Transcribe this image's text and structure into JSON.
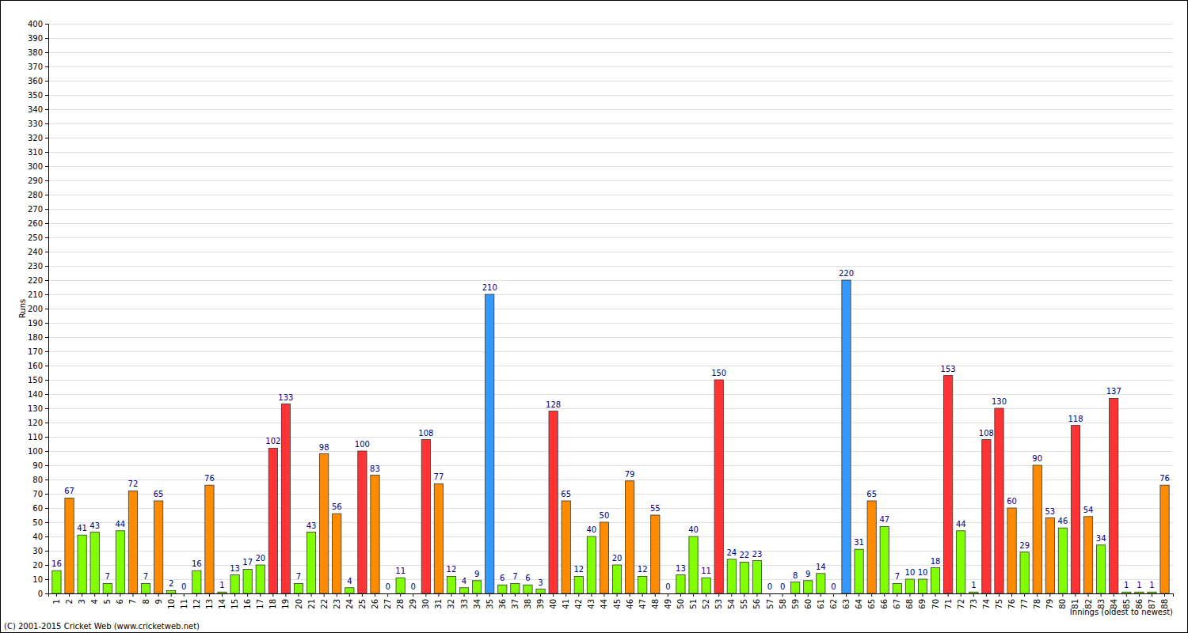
{
  "chart_data": {
    "type": "bar",
    "y_label": "Runs",
    "x_label": "Innings (oldest to newest)",
    "annotations": [
      "(C) 2001-2015 Cricket Web (www.cricketweb.net)"
    ],
    "categories": [
      "1",
      "2",
      "3",
      "4",
      "5",
      "6",
      "7",
      "8",
      "9",
      "10",
      "11",
      "12",
      "13",
      "14",
      "15",
      "16",
      "17",
      "18",
      "19",
      "20",
      "21",
      "22",
      "23",
      "24",
      "25",
      "26",
      "27",
      "28",
      "29",
      "30",
      "31",
      "32",
      "33",
      "34",
      "35",
      "36",
      "37",
      "38",
      "39",
      "40",
      "41",
      "42",
      "43",
      "44",
      "45",
      "46",
      "47",
      "48",
      "49",
      "50",
      "51",
      "52",
      "53",
      "54",
      "55",
      "56",
      "57",
      "58",
      "59",
      "60",
      "61",
      "62",
      "63",
      "64",
      "65",
      "66",
      "67",
      "68",
      "69",
      "70",
      "71",
      "72",
      "73",
      "74",
      "75",
      "76",
      "77",
      "78",
      "79",
      "80",
      "81",
      "82",
      "83",
      "84",
      "85",
      "86",
      "87",
      "88"
    ],
    "values": [
      16,
      67,
      41,
      43,
      7,
      44,
      72,
      7,
      65,
      2,
      0,
      16,
      76,
      1,
      13,
      17,
      20,
      102,
      133,
      7,
      43,
      98,
      56,
      4,
      100,
      83,
      0,
      11,
      0,
      108,
      77,
      12,
      4,
      9,
      210,
      6,
      7,
      6,
      3,
      128,
      65,
      12,
      40,
      50,
      20,
      79,
      12,
      55,
      0,
      13,
      40,
      11,
      150,
      24,
      22,
      23,
      0,
      0,
      8,
      9,
      14,
      0,
      220,
      31,
      65,
      47,
      7,
      10,
      10,
      18,
      153,
      44,
      1,
      108,
      130,
      60,
      29,
      90,
      53,
      46,
      118,
      54,
      34,
      137,
      1,
      1,
      1,
      76
    ],
    "colors": [
      "#80ff00",
      "#ff8c00",
      "#80ff00",
      "#80ff00",
      "#80ff00",
      "#80ff00",
      "#ff8c00",
      "#80ff00",
      "#ff8c00",
      "#80ff00",
      "#80ff00",
      "#80ff00",
      "#ff8c00",
      "#80ff00",
      "#80ff00",
      "#80ff00",
      "#80ff00",
      "#ff3333",
      "#ff3333",
      "#80ff00",
      "#80ff00",
      "#ff8c00",
      "#ff8c00",
      "#80ff00",
      "#ff3333",
      "#ff8c00",
      "#80ff00",
      "#80ff00",
      "#80ff00",
      "#ff3333",
      "#ff8c00",
      "#80ff00",
      "#80ff00",
      "#80ff00",
      "#3399ff",
      "#80ff00",
      "#80ff00",
      "#80ff00",
      "#80ff00",
      "#ff3333",
      "#ff8c00",
      "#80ff00",
      "#80ff00",
      "#ff8c00",
      "#80ff00",
      "#ff8c00",
      "#80ff00",
      "#ff8c00",
      "#80ff00",
      "#80ff00",
      "#80ff00",
      "#80ff00",
      "#ff3333",
      "#80ff00",
      "#80ff00",
      "#80ff00",
      "#80ff00",
      "#80ff00",
      "#80ff00",
      "#80ff00",
      "#80ff00",
      "#80ff00",
      "#3399ff",
      "#80ff00",
      "#ff8c00",
      "#80ff00",
      "#80ff00",
      "#80ff00",
      "#80ff00",
      "#80ff00",
      "#ff3333",
      "#80ff00",
      "#80ff00",
      "#ff3333",
      "#ff3333",
      "#ff8c00",
      "#80ff00",
      "#ff8c00",
      "#ff8c00",
      "#80ff00",
      "#ff3333",
      "#ff8c00",
      "#80ff00",
      "#ff3333",
      "#80ff00",
      "#80ff00",
      "#80ff00",
      "#ff8c00"
    ],
    "ylim": [
      0,
      400
    ],
    "yticks": [
      0,
      10,
      20,
      30,
      40,
      50,
      60,
      70,
      80,
      90,
      100,
      110,
      120,
      130,
      140,
      150,
      160,
      170,
      180,
      190,
      200,
      210,
      220,
      230,
      240,
      250,
      260,
      270,
      280,
      290,
      300,
      310,
      320,
      330,
      340,
      350,
      360,
      370,
      380,
      390,
      400
    ],
    "grid": true,
    "data_labels": true
  }
}
